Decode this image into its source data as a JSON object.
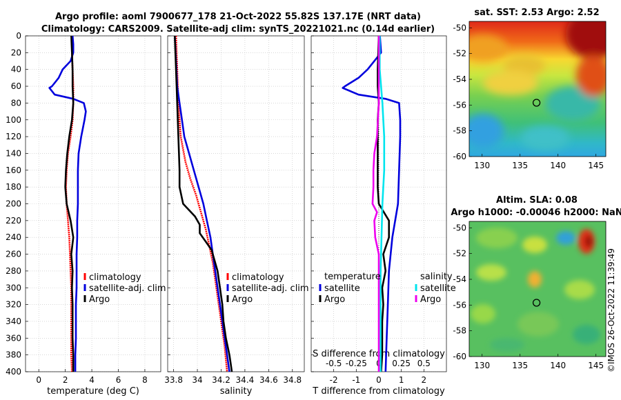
{
  "header": {
    "title_line1": "Argo profile: aoml 7900677_178 21-Oct-2022 55.82S 137.17E (NRT data)",
    "title_line2": "Climatology: CARS2009. Satellite-adj clim: synTS_20221021.nc (0.14d earlier)"
  },
  "watermark": "©IMOS 26-Oct-2022 11:39:49",
  "colors": {
    "climatology": "#ff0000",
    "satellite": "#0000dd",
    "argo": "#000000",
    "sal_sat": "#00e5ee",
    "sal_argo": "#ee00ee"
  },
  "chart_data": [
    {
      "type": "line",
      "id": "temperature",
      "xlabel": "temperature (deg C)",
      "xlim": [
        -1,
        9.2
      ],
      "xticks": [
        0,
        2,
        4,
        6,
        8
      ],
      "ylim": [
        0,
        400
      ],
      "yticks": [
        0,
        20,
        40,
        60,
        80,
        100,
        120,
        140,
        160,
        180,
        200,
        220,
        240,
        260,
        280,
        300,
        320,
        340,
        360,
        380,
        400
      ],
      "legend": [
        "climatology",
        "satellite-adj. clim",
        "Argo"
      ],
      "series": [
        {
          "name": "climatology",
          "color": "#ff0000",
          "depth": [
            0,
            20,
            40,
            60,
            80,
            100,
            120,
            140,
            160,
            180,
            200,
            220,
            240,
            260,
            280,
            300,
            320,
            340,
            360,
            380,
            400
          ],
          "values": [
            2.5,
            2.5,
            2.55,
            2.6,
            2.6,
            2.55,
            2.4,
            2.2,
            2.1,
            2.05,
            2.1,
            2.2,
            2.3,
            2.35,
            2.4,
            2.45,
            2.45,
            2.45,
            2.45,
            2.45,
            2.5
          ]
        },
        {
          "name": "satellite-adj. clim",
          "color": "#0000dd",
          "depth": [
            0,
            10,
            20,
            30,
            40,
            50,
            60,
            62,
            70,
            75,
            80,
            90,
            100,
            120,
            140,
            160,
            180,
            200,
            220,
            240,
            260,
            280,
            300,
            320,
            340,
            360,
            380,
            400
          ],
          "values": [
            2.55,
            2.6,
            2.6,
            2.4,
            1.8,
            1.5,
            1.0,
            0.8,
            1.2,
            2.6,
            3.4,
            3.55,
            3.45,
            3.2,
            3.0,
            2.95,
            2.95,
            2.95,
            2.9,
            2.9,
            2.85,
            2.85,
            2.85,
            2.8,
            2.8,
            2.8,
            2.75,
            2.75
          ]
        },
        {
          "name": "Argo",
          "color": "#000000",
          "depth": [
            0,
            20,
            40,
            60,
            80,
            100,
            120,
            140,
            160,
            180,
            200,
            220,
            240,
            260,
            280,
            300,
            320,
            340,
            360,
            380,
            400
          ],
          "values": [
            2.45,
            2.5,
            2.55,
            2.55,
            2.6,
            2.5,
            2.3,
            2.15,
            2.05,
            2.0,
            2.1,
            2.4,
            2.6,
            2.45,
            2.55,
            2.5,
            2.55,
            2.55,
            2.55,
            2.6,
            2.6
          ]
        }
      ]
    },
    {
      "type": "line",
      "id": "salinity",
      "xlabel": "salinity",
      "xlim": [
        33.75,
        34.9
      ],
      "xticks": [
        33.8,
        34,
        34.2,
        34.4,
        34.6,
        34.8
      ],
      "xticklabels": [
        "33.8",
        "34",
        "34.2",
        "34.4",
        "34.6",
        "34.8"
      ],
      "ylim": [
        0,
        400
      ],
      "legend": [
        "climatology",
        "satellite-adj. clim",
        "Argo"
      ],
      "series": [
        {
          "name": "climatology",
          "color": "#ff0000",
          "depth": [
            0,
            40,
            80,
            120,
            150,
            170,
            190,
            210,
            230,
            250,
            270,
            290,
            310,
            330,
            350,
            370,
            400
          ],
          "values": [
            33.82,
            33.83,
            33.84,
            33.86,
            33.9,
            33.94,
            33.99,
            34.03,
            34.07,
            34.1,
            34.13,
            34.15,
            34.17,
            34.19,
            34.21,
            34.23,
            34.25
          ]
        },
        {
          "name": "satellite-adj. clim",
          "color": "#0000dd",
          "depth": [
            0,
            30,
            60,
            80,
            100,
            120,
            140,
            160,
            180,
            200,
            220,
            240,
            260,
            280,
            300,
            320,
            340,
            360,
            380,
            400
          ],
          "values": [
            33.81,
            33.82,
            33.83,
            33.85,
            33.87,
            33.89,
            33.93,
            33.97,
            34.01,
            34.05,
            34.08,
            34.11,
            34.13,
            34.15,
            34.17,
            34.19,
            34.21,
            34.23,
            34.25,
            34.27
          ]
        },
        {
          "name": "Argo",
          "color": "#000000",
          "depth": [
            0,
            40,
            80,
            120,
            160,
            180,
            200,
            215,
            225,
            235,
            245,
            255,
            265,
            280,
            300,
            320,
            340,
            360,
            380,
            390,
            400
          ],
          "values": [
            33.81,
            33.82,
            33.83,
            33.84,
            33.85,
            33.85,
            33.88,
            33.98,
            34.02,
            34.02,
            34.07,
            34.12,
            34.14,
            34.17,
            34.19,
            34.21,
            34.22,
            34.24,
            34.27,
            34.28,
            34.29
          ]
        }
      ]
    },
    {
      "type": "line",
      "id": "difference",
      "xlabel": "T difference from climatology",
      "top_axis_label": "S difference from climatology",
      "xlim": [
        -3,
        3
      ],
      "xticks": [
        -2,
        -1,
        0,
        1,
        2
      ],
      "top_ticks": [
        -0.5,
        -0.25,
        0,
        0.25,
        0.5
      ],
      "top_ticklabels": [
        "-0.5",
        "-0.25",
        "0",
        "0.25",
        "0.5"
      ],
      "ylim": [
        0,
        400
      ],
      "legend_temperature_title": "temperature",
      "legend_salinity_title": "salinity",
      "legend_temperature": [
        "satellite",
        "Argo"
      ],
      "legend_salinity": [
        "satellite",
        "Argo"
      ],
      "series": [
        {
          "name": "temperature satellite",
          "color": "#0000dd",
          "depth": [
            0,
            20,
            40,
            50,
            60,
            62,
            70,
            75,
            80,
            100,
            120,
            160,
            200,
            240,
            280,
            320,
            360,
            400
          ],
          "values": [
            0.05,
            0.1,
            -0.5,
            -0.9,
            -1.5,
            -1.6,
            -0.9,
            0.3,
            0.9,
            0.95,
            0.95,
            0.9,
            0.85,
            0.6,
            0.45,
            0.4,
            0.35,
            0.3
          ]
        },
        {
          "name": "temperature Argo",
          "color": "#000000",
          "depth": [
            0,
            40,
            60,
            80,
            100,
            140,
            180,
            200,
            220,
            240,
            260,
            280,
            300,
            320,
            340,
            360,
            380,
            400
          ],
          "values": [
            0.0,
            -0.05,
            -0.05,
            0.0,
            -0.05,
            -0.05,
            -0.05,
            0.0,
            0.45,
            0.45,
            0.2,
            0.3,
            0.15,
            0.2,
            0.15,
            0.15,
            0.15,
            0.1
          ]
        },
        {
          "name": "salinity satellite",
          "color": "#00e5ee",
          "scale": "S",
          "depth": [
            0,
            40,
            80,
            120,
            160,
            200,
            240,
            280,
            320,
            360,
            400
          ],
          "values": [
            0.01,
            0.01,
            0.04,
            0.06,
            0.06,
            0.04,
            0.03,
            0.02,
            0.02,
            0.02,
            0.02
          ]
        },
        {
          "name": "salinity Argo",
          "color": "#ee00ee",
          "scale": "S",
          "depth": [
            0,
            40,
            80,
            100,
            120,
            140,
            160,
            180,
            200,
            210,
            220,
            240,
            260,
            280,
            300,
            320,
            360,
            400
          ],
          "values": [
            0.0,
            0.0,
            0.0,
            -0.01,
            -0.02,
            -0.05,
            -0.06,
            -0.06,
            -0.07,
            -0.02,
            -0.05,
            -0.04,
            0.0,
            0.0,
            0.0,
            0.0,
            0.0,
            0.0
          ]
        }
      ]
    }
  ],
  "maps": [
    {
      "title_lines": [
        "sat. SST: 2.53 Argo: 2.52"
      ],
      "yticks": [
        -50,
        -52,
        -54,
        -56,
        -58,
        -60
      ],
      "xticks": [
        130,
        135,
        140,
        145
      ],
      "marker_lon": 137.17,
      "marker_lat": -55.82
    },
    {
      "title_lines": [
        "Altim. SLA: 0.08",
        "Argo h1000: -0.00046 h2000: NaN"
      ],
      "yticks": [
        -50,
        -52,
        -54,
        -56,
        -58,
        -60
      ],
      "xticks": [
        130,
        135,
        140,
        145
      ],
      "marker_lon": 137.17,
      "marker_lat": -55.82
    }
  ]
}
